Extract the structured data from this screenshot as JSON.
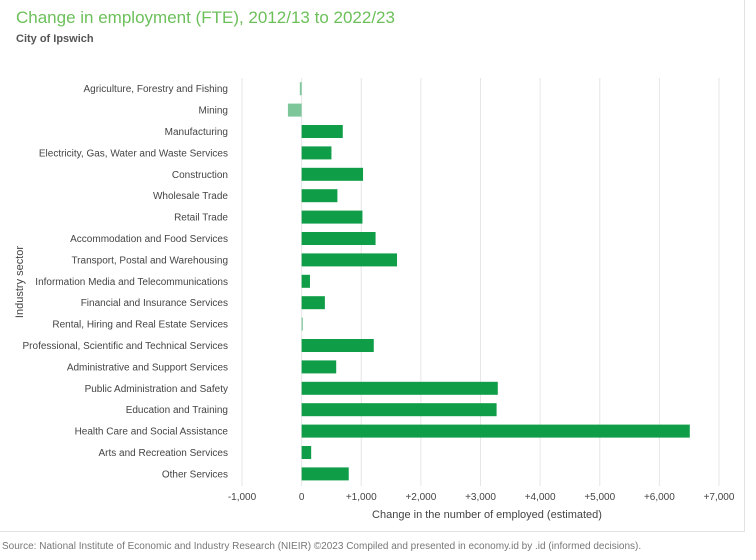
{
  "header": {
    "title": "Change in employment (FTE), 2012/13 to 2022/23",
    "subtitle": "City of Ipswich"
  },
  "footer": {
    "source": "Source: National Institute of Economic and Industry Research (NIEIR) ©2023 Compiled and presented in economy.id by .id (informed decisions)."
  },
  "colors": {
    "title": "#6cc05a",
    "positive_bar": "#109d48",
    "negative_bar": "#7cc69a",
    "grid": "#e6e6e6",
    "axis_text": "#444444"
  },
  "chart_data": {
    "type": "bar",
    "orientation": "horizontal",
    "title": "Change in employment (FTE), 2012/13 to 2022/23",
    "subtitle": "City of Ipswich",
    "xlabel": "Change in the number of employed (estimated)",
    "ylabel": "Industry sector",
    "xlim": [
      -1000,
      7000
    ],
    "xticks": [
      -1000,
      0,
      1000,
      2000,
      3000,
      4000,
      5000,
      6000,
      7000
    ],
    "xtick_labels": [
      "-1,000",
      "0",
      "+1,000",
      "+2,000",
      "+3,000",
      "+4,000",
      "+5,000",
      "+6,000",
      "+7,000"
    ],
    "grid": true,
    "legend": "none",
    "categories": [
      "Agriculture, Forestry and Fishing",
      "Mining",
      "Manufacturing",
      "Electricity, Gas, Water and Waste Services",
      "Construction",
      "Wholesale Trade",
      "Retail Trade",
      "Accommodation and Food Services",
      "Transport, Postal and Warehousing",
      "Information Media and Telecommunications",
      "Financial and Insurance Services",
      "Rental, Hiring and Real Estate Services",
      "Professional, Scientific and Technical Services",
      "Administrative and Support Services",
      "Public Administration and Safety",
      "Education and Training",
      "Health Care and Social Assistance",
      "Arts and Recreation Services",
      "Other Services"
    ],
    "values": [
      -30,
      -230,
      690,
      500,
      1030,
      600,
      1020,
      1240,
      1600,
      140,
      390,
      10,
      1210,
      580,
      3290,
      3270,
      6510,
      160,
      790
    ]
  }
}
